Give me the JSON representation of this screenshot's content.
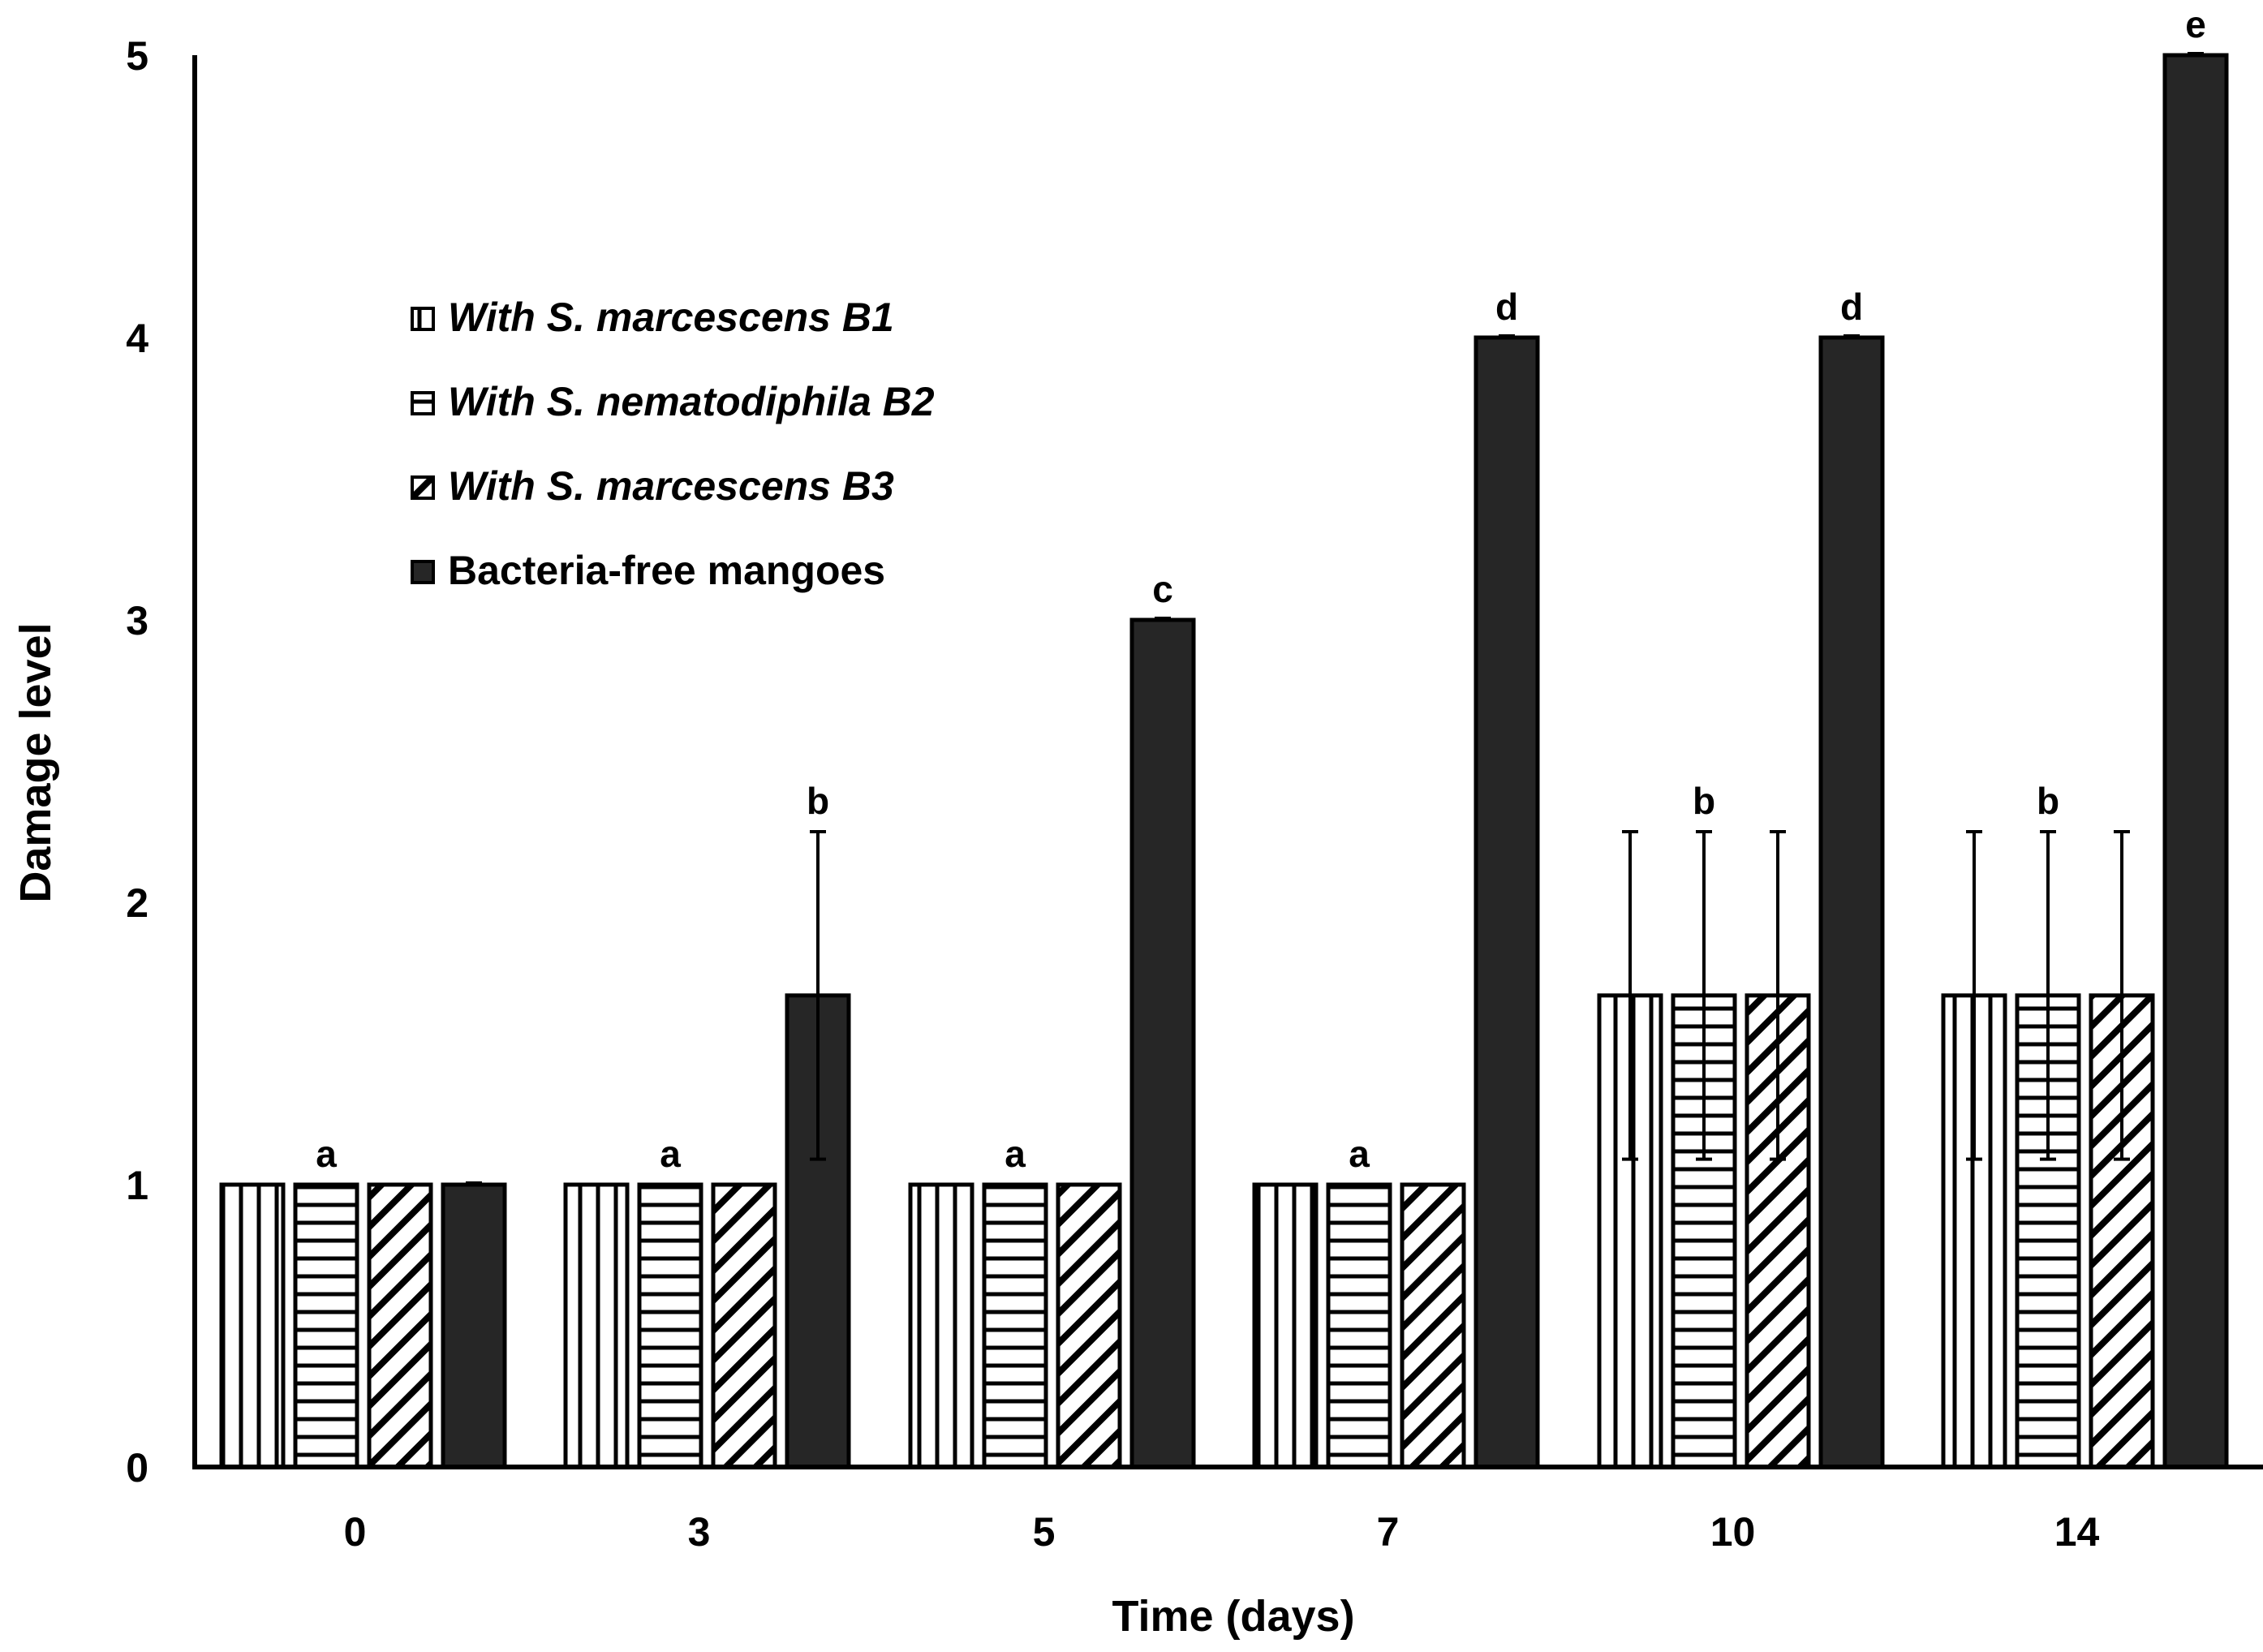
{
  "chart_data": {
    "type": "bar",
    "title": "",
    "xlabel": "Time (days)",
    "ylabel": "Damage level",
    "ylim": [
      0,
      5
    ],
    "yticks": [
      "0",
      "1",
      "2",
      "3",
      "4",
      "5"
    ],
    "categories": [
      "0",
      "3",
      "5",
      "7",
      "10",
      "14"
    ],
    "legend_position": "top-left",
    "grid": false,
    "series": [
      {
        "name": "With S. marcescens B1",
        "label_prefix": "With ",
        "label_italic": "S. marcescens B1",
        "pattern": "vertical",
        "values": [
          1,
          1,
          1,
          1,
          1.67,
          1.67
        ],
        "errors": [
          0,
          0,
          0,
          0,
          0.58,
          0.58
        ]
      },
      {
        "name": "With S. nematodiphila B2",
        "label_prefix": "With ",
        "label_italic": "S. nematodiphila B2",
        "pattern": "horizontal",
        "values": [
          1,
          1,
          1,
          1,
          1.67,
          1.67
        ],
        "errors": [
          0,
          0,
          0,
          0,
          0.58,
          0.58
        ]
      },
      {
        "name": "With S. marcescens B3",
        "label_prefix": "With ",
        "label_italic": "S. marcescens B3",
        "pattern": "diagonal",
        "values": [
          1,
          1,
          1,
          1,
          1.67,
          1.67
        ],
        "errors": [
          0,
          0,
          0,
          0,
          0.58,
          0.58
        ]
      },
      {
        "name": "Bacteria-free mangoes",
        "label_prefix": "Bacteria-free mangoes",
        "label_italic": "",
        "pattern": "solid",
        "values": [
          1,
          1.67,
          3,
          4,
          4,
          5
        ],
        "errors": [
          0,
          0.58,
          0,
          0,
          0,
          0
        ]
      }
    ],
    "annotations": [
      {
        "category": "0",
        "series": 1,
        "text": "a"
      },
      {
        "category": "3",
        "series": 1,
        "text": "a"
      },
      {
        "category": "3",
        "series": 3,
        "text": "b"
      },
      {
        "category": "5",
        "series": 1,
        "text": "a"
      },
      {
        "category": "5",
        "series": 3,
        "text": "c"
      },
      {
        "category": "7",
        "series": 1,
        "text": "a"
      },
      {
        "category": "7",
        "series": 3,
        "text": "d"
      },
      {
        "category": "10",
        "series": 1,
        "text": "b"
      },
      {
        "category": "10",
        "series": 3,
        "text": "d"
      },
      {
        "category": "14",
        "series": 1,
        "text": "b"
      },
      {
        "category": "14",
        "series": 3,
        "text": "e"
      }
    ],
    "colors": {
      "bar_fill": "#ffffff",
      "bar_stroke": "#000000",
      "solid_fill": "#262626",
      "axis": "#000000"
    }
  }
}
